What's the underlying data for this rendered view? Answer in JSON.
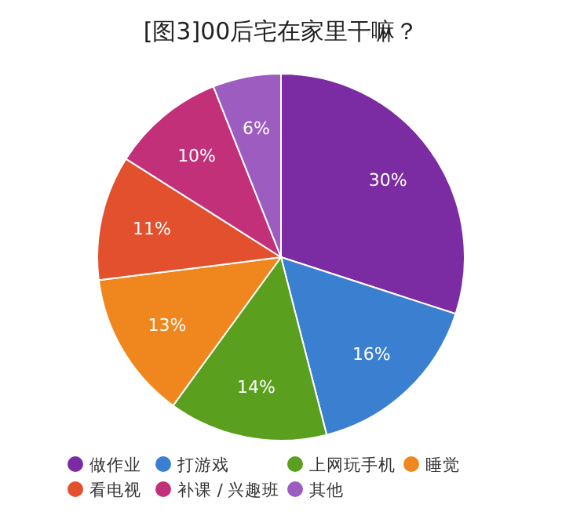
{
  "chart_data": {
    "type": "pie",
    "title": "[图3]00后宅在家里干嘛？",
    "categories": [
      "做作业",
      "打游戏",
      "上网玩手机",
      "睡觉",
      "看电视",
      "补课 / 兴趣班",
      "其他"
    ],
    "values": [
      30,
      16,
      14,
      13,
      11,
      10,
      6
    ],
    "colors": [
      "#7b2ca3",
      "#3a7fd0",
      "#5a9f1e",
      "#f0861e",
      "#e2502e",
      "#c2307a",
      "#9c5cc0"
    ],
    "value_labels": [
      "30%",
      "16%",
      "14%",
      "13%",
      "11%",
      "10%",
      "6%"
    ],
    "legend": "bottom"
  }
}
